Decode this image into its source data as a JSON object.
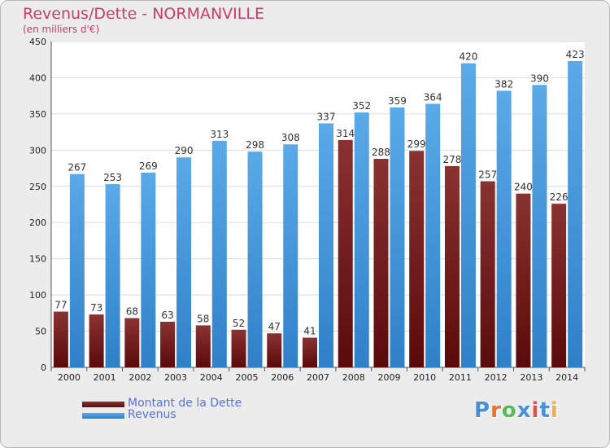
{
  "chart_data": {
    "type": "bar",
    "title": "Revenus/Dette - NORMANVILLE",
    "subtitle": "(en milliers d'€)",
    "categories": [
      "2000",
      "2001",
      "2002",
      "2003",
      "2004",
      "2005",
      "2006",
      "2007",
      "2008",
      "2009",
      "2010",
      "2011",
      "2012",
      "2013",
      "2014"
    ],
    "series": [
      {
        "name": "Montant de la Dette",
        "color": "#7a2a2a",
        "values": [
          77,
          73,
          68,
          63,
          58,
          52,
          47,
          41,
          314,
          288,
          299,
          278,
          257,
          240,
          226
        ]
      },
      {
        "name": "Revenus",
        "color": "#4da0e0",
        "values": [
          267,
          253,
          269,
          290,
          313,
          298,
          308,
          337,
          352,
          359,
          364,
          420,
          382,
          390,
          423
        ]
      }
    ],
    "yticks": [
      "0",
      "50",
      "100",
      "150",
      "200",
      "250",
      "300",
      "350",
      "400",
      "450"
    ],
    "ylim": [
      0,
      450
    ],
    "grid": true,
    "legend_position": "bottom-left"
  },
  "logo": {
    "text": "Proxiti",
    "letters": [
      "P",
      "r",
      "o",
      "x",
      "i",
      "t",
      "i"
    ],
    "colors": [
      "#4a90d9",
      "#e8732a",
      "#5cb85c",
      "#4a90d9",
      "#d9534f",
      "#4a90d9",
      "#f0ad4e"
    ]
  }
}
